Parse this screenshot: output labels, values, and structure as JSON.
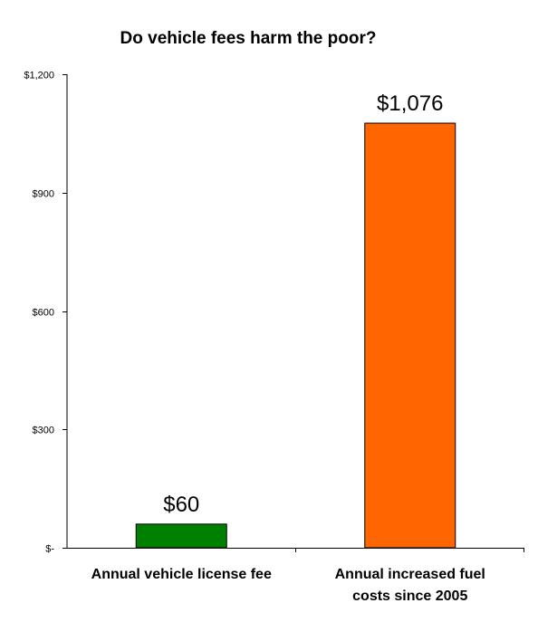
{
  "chart_data": {
    "type": "bar",
    "title": "Do vehicle fees harm the poor?",
    "xlabel": "",
    "ylabel": "",
    "categories": [
      [
        "Annual vehicle license fee"
      ],
      [
        "Annual increased fuel",
        "costs since 2005"
      ]
    ],
    "values": [
      60,
      1076
    ],
    "data_labels": [
      "$60",
      "$1,076"
    ],
    "bar_colors": [
      "#008000",
      "#ff6600"
    ],
    "ylim": [
      0,
      1200
    ],
    "yticks": [
      0,
      300,
      600,
      900,
      1200
    ],
    "ytick_labels": [
      "$-",
      "$300",
      "$600",
      "$900",
      "$1,200"
    ],
    "grid": false,
    "legend": "none"
  }
}
